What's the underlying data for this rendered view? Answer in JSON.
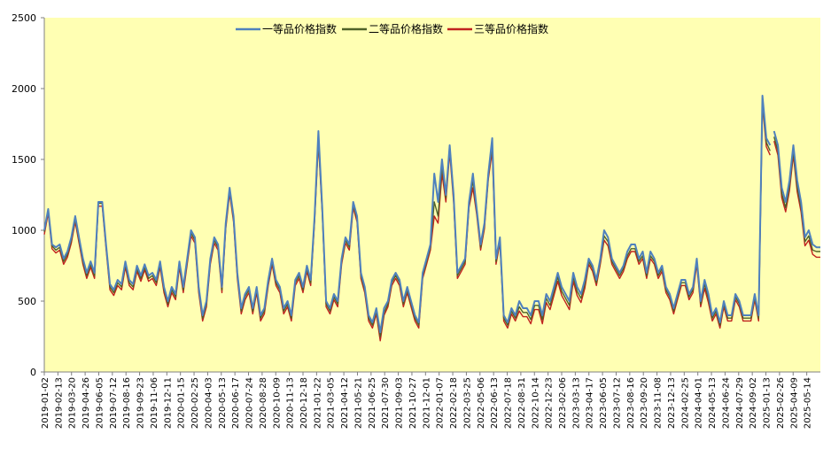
{
  "chart_data": {
    "type": "line",
    "title": "",
    "xlabel": "",
    "ylabel": "",
    "ylim": [
      0,
      2500
    ],
    "y_ticks": [
      0,
      500,
      1000,
      1500,
      2000,
      2500
    ],
    "grid": false,
    "legend_position": "top",
    "plot_background": "#FFFFB3",
    "x_tick_labels": [
      "2019-01-02",
      "2019-02-13",
      "2019-03-20",
      "2019-04-26",
      "2019-06-05",
      "2019-07-12",
      "2019-08-16",
      "2019-09-23",
      "2019-11-06",
      "2019-12-11",
      "2020-01-15",
      "2020-02-25",
      "2020-04-03",
      "2020-05-13",
      "2020-06-17",
      "2020-07-24",
      "2020-08-28",
      "2020-10-09",
      "2020-11-13",
      "2020-12-18",
      "2021-01-22",
      "2021-03-05",
      "2021-04-12",
      "2021-05-21",
      "2021-06-25",
      "2021-07-30",
      "2021-09-03",
      "2021-10-27",
      "2021-12-01",
      "2022-01-07",
      "2022-02-18",
      "2022-03-25",
      "2022-05-06",
      "2022-06-13",
      "2022-07-18",
      "2022-08-31",
      "2022-10-14",
      "2022-12-23",
      "2023-02-06",
      "2023-03-13",
      "2023-04-17",
      "2023-06-05",
      "2023-07-12",
      "2023-08-16",
      "2023-09-20",
      "2023-11-08",
      "2023-12-13",
      "2024-02-25",
      "2024-04-01",
      "2024-05-13",
      "2024-06-24",
      "2024-07-29",
      "2024-09-02",
      "2025-01-13",
      "2025-02-26",
      "2025-04-09",
      "2025-05-14"
    ],
    "series": [
      {
        "name": "一等品价格指数",
        "color": "#4F81BD",
        "values": [
          1000,
          1150,
          900,
          880,
          900,
          800,
          850,
          950,
          1100,
          950,
          800,
          700,
          780,
          700,
          1200,
          1200,
          900,
          620,
          580,
          650,
          620,
          780,
          650,
          620,
          750,
          680,
          760,
          680,
          700,
          650,
          780,
          600,
          500,
          600,
          550,
          780,
          600,
          800,
          1000,
          950,
          600,
          400,
          500,
          800,
          950,
          900,
          600,
          1050,
          1300,
          1100,
          700,
          450,
          550,
          600,
          450,
          600,
          400,
          450,
          650,
          800,
          650,
          600,
          450,
          500,
          400,
          650,
          700,
          600,
          750,
          650,
          1100,
          1700,
          1150,
          500,
          450,
          550,
          500,
          800,
          950,
          900,
          1200,
          1100,
          700,
          600,
          400,
          350,
          450,
          280,
          450,
          500,
          650,
          700,
          650,
          500,
          600,
          500,
          400,
          350,
          700,
          800,
          900,
          1400,
          1200,
          1500,
          1250,
          1600,
          1250,
          700,
          750,
          800,
          1200,
          1400,
          1150,
          900,
          1050,
          1400,
          1650,
          800,
          950,
          400,
          350,
          450,
          400,
          500,
          450,
          450,
          400,
          500,
          500,
          400,
          550,
          500,
          600,
          700,
          600,
          550,
          500,
          700,
          600,
          550,
          650,
          800,
          750,
          650,
          800,
          1000,
          950,
          800,
          750,
          700,
          750,
          850,
          900,
          900,
          800,
          850,
          700,
          850,
          800,
          700,
          750,
          600,
          550,
          450,
          550,
          650,
          650,
          550,
          600,
          800,
          500,
          650,
          550,
          400,
          450,
          350,
          500,
          400,
          400,
          550,
          500,
          400,
          400,
          400,
          550,
          400,
          1950,
          1650,
          1600,
          1700,
          1600,
          1300,
          1200,
          1350,
          1600,
          1350,
          1200,
          950,
          1000,
          900,
          880,
          880
        ]
      },
      {
        "name": "二等品价格指数",
        "color": "#4F6228",
        "values": [
          990,
          1140,
          890,
          860,
          880,
          780,
          830,
          930,
          1080,
          930,
          780,
          680,
          760,
          680,
          1190,
          1190,
          890,
          600,
          560,
          630,
          600,
          760,
          630,
          600,
          730,
          660,
          740,
          660,
          680,
          630,
          760,
          580,
          480,
          580,
          530,
          760,
          580,
          780,
          980,
          930,
          580,
          380,
          480,
          780,
          930,
          880,
          580,
          1030,
          1280,
          1080,
          680,
          430,
          530,
          580,
          430,
          580,
          380,
          430,
          630,
          780,
          630,
          580,
          430,
          480,
          380,
          630,
          680,
          580,
          730,
          630,
          1080,
          1650,
          1130,
          480,
          430,
          530,
          480,
          780,
          930,
          880,
          1180,
          1080,
          680,
          580,
          380,
          330,
          430,
          250,
          420,
          480,
          630,
          680,
          630,
          480,
          580,
          480,
          380,
          330,
          680,
          780,
          880,
          1200,
          1100,
          1450,
          1230,
          1580,
          1230,
          680,
          730,
          780,
          1180,
          1350,
          1130,
          880,
          1030,
          1380,
          1600,
          780,
          930,
          380,
          330,
          430,
          380,
          460,
          420,
          420,
          370,
          470,
          470,
          370,
          520,
          470,
          570,
          670,
          570,
          520,
          470,
          670,
          570,
          520,
          620,
          780,
          730,
          630,
          780,
          960,
          920,
          780,
          730,
          680,
          730,
          820,
          870,
          870,
          780,
          820,
          680,
          820,
          780,
          680,
          730,
          580,
          530,
          430,
          530,
          630,
          630,
          530,
          580,
          780,
          480,
          620,
          520,
          380,
          430,
          330,
          480,
          380,
          380,
          530,
          480,
          380,
          380,
          380,
          530,
          380,
          1900,
          1620,
          1560,
          1660,
          1560,
          1260,
          1160,
          1310,
          1560,
          1300,
          1160,
          920,
          960,
          860,
          850,
          850
        ]
      },
      {
        "name": "三等品价格指数",
        "color": "#C0221E",
        "values": [
          970,
          1120,
          870,
          840,
          860,
          760,
          810,
          910,
          1060,
          910,
          760,
          660,
          740,
          660,
          1170,
          1170,
          870,
          580,
          540,
          610,
          580,
          740,
          610,
          580,
          710,
          640,
          720,
          640,
          660,
          610,
          740,
          560,
          460,
          560,
          510,
          740,
          560,
          760,
          960,
          910,
          560,
          360,
          460,
          760,
          910,
          860,
          560,
          1010,
          1260,
          1060,
          660,
          410,
          510,
          560,
          410,
          560,
          360,
          410,
          610,
          760,
          610,
          560,
          410,
          460,
          360,
          610,
          660,
          560,
          710,
          610,
          1060,
          1620,
          1110,
          460,
          410,
          510,
          460,
          760,
          910,
          860,
          1160,
          1060,
          660,
          560,
          360,
          310,
          410,
          220,
          400,
          460,
          610,
          660,
          610,
          460,
          560,
          460,
          360,
          310,
          660,
          760,
          860,
          1100,
          1050,
          1400,
          1200,
          1550,
          1200,
          660,
          710,
          760,
          1160,
          1300,
          1110,
          860,
          1010,
          1360,
          1560,
          760,
          910,
          360,
          310,
          410,
          360,
          430,
          390,
          390,
          340,
          440,
          440,
          340,
          490,
          440,
          540,
          640,
          540,
          490,
          440,
          640,
          540,
          490,
          590,
          760,
          710,
          610,
          760,
          930,
          890,
          760,
          710,
          660,
          710,
          800,
          850,
          850,
          760,
          800,
          660,
          800,
          760,
          660,
          710,
          560,
          510,
          410,
          510,
          610,
          610,
          510,
          560,
          760,
          460,
          590,
          490,
          360,
          410,
          310,
          460,
          360,
          360,
          510,
          460,
          360,
          360,
          360,
          510,
          360,
          1880,
          1590,
          1530,
          1630,
          1530,
          1230,
          1130,
          1280,
          1530,
          1270,
          1130,
          890,
          930,
          830,
          810,
          810
        ]
      }
    ],
    "gap_index": 189
  }
}
